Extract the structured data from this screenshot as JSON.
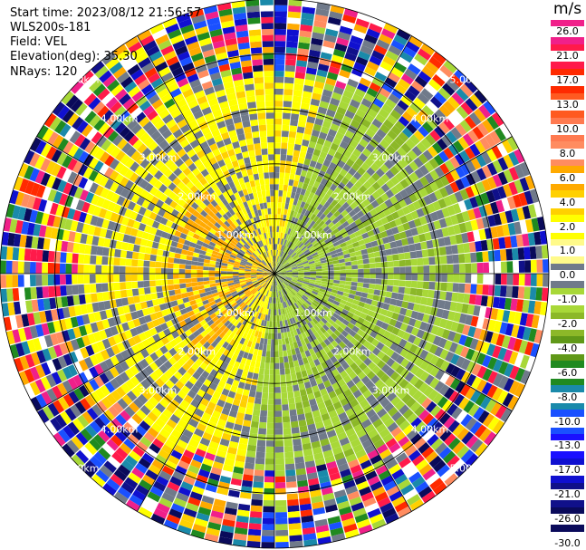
{
  "header": {
    "start_time": "Start time: 2023/08/12 21:56:57",
    "site": "WLS200s-181",
    "field": "Field: VEL",
    "elevation": "Elevation(deg): 35.30",
    "nrays": "NRays: 120"
  },
  "colorbar": {
    "unit": "m/s",
    "labels": [
      "26.0",
      "21.0",
      "17.0",
      "13.0",
      "10.0",
      "8.0",
      "6.0",
      "4.0",
      "2.0",
      "1.0",
      "0.0",
      "-1.0",
      "-2.0",
      "-4.0",
      "-6.0",
      "-8.0",
      "-10.0",
      "-13.0",
      "-17.0",
      "-21.0",
      "-26.0",
      "-30.0"
    ],
    "colors": [
      "#f0208a",
      "#ff1a4a",
      "#ff2a00",
      "#ff5a20",
      "#ff7a50",
      "#ff8c60",
      "#ffaa00",
      "#ffd000",
      "#ffff00",
      "#fffa8a",
      "#707a8a",
      "#a8d838",
      "#8cb828",
      "#609818",
      "#208a20",
      "#1a8aaa",
      "#1a50ff",
      "#1a10ff",
      "#1010d0",
      "#10108a",
      "#0a0a5a",
      "#ffffff"
    ],
    "white_between": true
  },
  "chart_data": {
    "type": "polar-ppi",
    "field": "VEL",
    "units": "m/s",
    "nrays": 120,
    "elevation_deg": 35.3,
    "range_rings_km": [
      1.0,
      2.0,
      3.0,
      4.0,
      5.0
    ],
    "ring_labels": [
      "1.00km",
      "2.00km",
      "3.00km",
      "4.00km",
      "5.00km"
    ],
    "range_rings_inner_labels": [
      "1.00km",
      "2.00km",
      "3.00km",
      "4.00km",
      "5.00km"
    ],
    "max_range_km": 5.0,
    "velocity_range": [
      -30.0,
      26.0
    ],
    "pattern": {
      "west_sector_velocity_ms": [
        2.0,
        6.0
      ],
      "east_sector_velocity_ms": [
        -4.0,
        -1.0
      ],
      "far_range_noise_beyond_km": 3.5
    }
  }
}
